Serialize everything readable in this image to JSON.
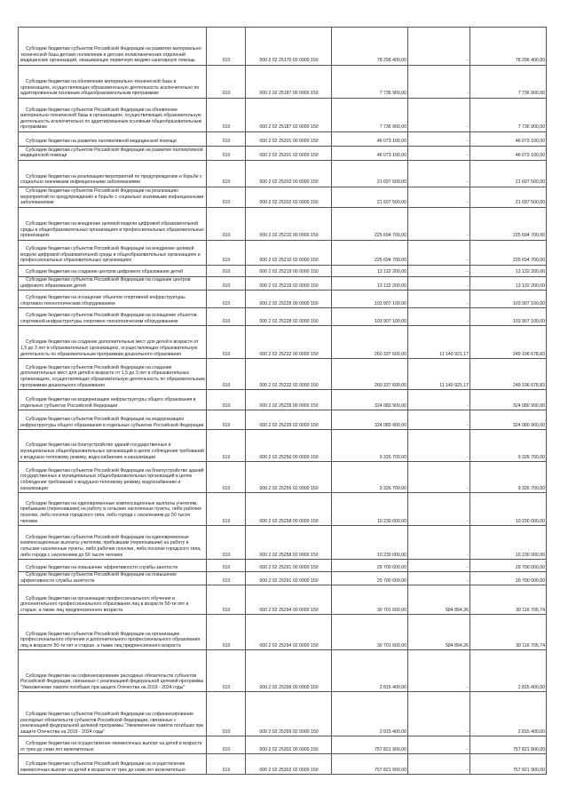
{
  "rows": [
    {
      "name": "Субсидии бюджетам субъектов Российской Федерации на развитие материально-технической базы детских поликлиник и детских поликлинических отделений медицинских организаций, оказывающих первичную медико-санитарную помощь",
      "code": "010",
      "kbk": "000 2 02 25170 02 0000 150",
      "approved": "78 296 400,00",
      "executed": "-",
      "remaining": "78 296 400,00"
    },
    {
      "name": "Субсидии бюджетам на обновление материально-технической базы в организациях, осуществляющих образовательную деятельность исключительно по адаптированным основным общеобразовательным программам",
      "code": "010",
      "kbk": "000 2 02 25187 00 0000 150",
      "approved": "7 736 900,00",
      "executed": "-",
      "remaining": "7 736 900,00"
    },
    {
      "name": "Субсидии бюджетам субъектов Российской Федерации на обновление материально-технической базы в организациях, осуществляющих образовательную деятельность исключительно по адаптированным основным общеобразовательным программам",
      "code": "010",
      "kbk": "000 2 02 25187 02 0000 150",
      "approved": "7 736 900,00",
      "executed": "-",
      "remaining": "7 736 900,00"
    },
    {
      "name": "Субсидии бюджетам на развитие паллиативной медицинской помощи",
      "code": "010",
      "kbk": "000 2 02 25201 00 0000 150",
      "approved": "46 073 100,00",
      "executed": "-",
      "remaining": "46 073 100,00"
    },
    {
      "name": "Субсидии бюджетам субъектов Российской Федерации на развитие паллиативной медицинской помощи",
      "code": "010",
      "kbk": "000 2 02 25201 02 0000 150",
      "approved": "46 073 100,00",
      "executed": "-",
      "remaining": "46 073 100,00"
    },
    {
      "name": "Субсидии бюджетам на реализацию мероприятий по предупреждению и борьбе с социально значимыми инфекционными заболеваниями",
      "code": "010",
      "kbk": "000 2 02 25202 00 0000 150",
      "approved": "21 697 500,00",
      "executed": "-",
      "remaining": "21 697 500,00"
    },
    {
      "name": "Субсидии бюджетам субъектов Российской Федерации на реализацию мероприятий по предупреждению и борьбе с социально значимыми инфекционными заболеваниями",
      "code": "010",
      "kbk": "000 2 02 25202 02 0000 150",
      "approved": "21 697 500,00",
      "executed": "-",
      "remaining": "21 697 500,00"
    },
    {
      "name": "Субсидии бюджетам на внедрение целевой модели цифровой образовательной среды в общеобразовательных организациях и профессиональных образовательных организациях",
      "code": "010",
      "kbk": "000 2 02 25210 00 0000 150",
      "approved": "225 694 700,00",
      "executed": "-",
      "remaining": "225 694 700,00"
    },
    {
      "name": "Субсидии бюджетам субъектов Российской Федерации на внедрение целевой модели цифровой образовательной среды в общеобразовательных организациях и профессиональных образовательных организациях",
      "code": "010",
      "kbk": "000 2 02 25210 02 0000 150",
      "approved": "225 694 700,00",
      "executed": "-",
      "remaining": "225 694 700,00"
    },
    {
      "name": "Субсидии бюджетам на создание центров цифрового образования детей",
      "code": "010",
      "kbk": "000 2 02 25219 00 0000 150",
      "approved": "13 132 200,00",
      "executed": "-",
      "remaining": "13 132 200,00"
    },
    {
      "name": "Субсидии бюджетам субъектов Российской Федерации на создание центров цифрового образования детей",
      "code": "010",
      "kbk": "000 2 02 25219 02 0000 150",
      "approved": "13 132 200,00",
      "executed": "-",
      "remaining": "13 132 200,00"
    },
    {
      "name": "Субсидии бюджетам на оснащение объектов спортивной инфраструктуры спортивно-технологическим оборудованием",
      "code": "010",
      "kbk": "000 2 02 25228 00 0000 150",
      "approved": "103 907 100,00",
      "executed": "-",
      "remaining": "103 907 100,00"
    },
    {
      "name": "Субсидии бюджетам субъектов Российской Федерации на оснащение объектов спортивной инфраструктуры спортивно-технологическим оборудованием",
      "code": "010",
      "kbk": "000 2 02 25228 02 0000 150",
      "approved": "103 907 100,00",
      "executed": "-",
      "remaining": "103 907 100,00"
    },
    {
      "name": "Субсидии бюджетам на создание дополнительных мест для детей в возрасте от 1,5 до 3 лет в образовательных организациях, осуществляющих образовательную деятельность по образовательным программам дошкольного образования",
      "code": "010",
      "kbk": "000 2 02 25232 00 0000 150",
      "approved": "260 337 600,00",
      "executed": "11 140 921,17",
      "remaining": "249 196 678,83"
    },
    {
      "name": "Субсидии бюджетам субъектов Российской Федерации на создание дополнительных мест для детей в возрасте от 1,5 до 3 лет в образовательных организациях, осуществляющих образовательную деятельность по образовательным программам дошкольного образования",
      "code": "010",
      "kbk": "000 2 02 25232 02 0000 150",
      "approved": "260 337 600,00",
      "executed": "11 140 921,17",
      "remaining": "249 196 678,83"
    },
    {
      "name": "Субсидии бюджетам на модернизацию инфраструктуры общего образования в отдельных субъектах Российской Федерации",
      "code": "010",
      "kbk": "000 2 02 25239 00 0000 150",
      "approved": "324 080 900,00",
      "executed": "-",
      "remaining": "324 080 900,00"
    },
    {
      "name": "Субсидии бюджетам субъектов Российской Федерации на модернизацию инфраструктуры общего образования в отдельных субъектах Российской Федерации",
      "code": "010",
      "kbk": "000 2 02 25239 02 0000 150",
      "approved": "324 080 900,00",
      "executed": "-",
      "remaining": "324 080 900,00"
    },
    {
      "name": "Субсидии бюджетам на благоустройство зданий государственных и муниципальных общеобразовательных организаций в целях соблюдения требований к воздушно-тепловому режиму, водоснабжению и канализации",
      "code": "010",
      "kbk": "000 2 02 25256 00 0000 150",
      "approved": "9 326 700,00",
      "executed": "-",
      "remaining": "9 326 700,00"
    },
    {
      "name": "Субсидии бюджетам субъектов Российской Федерации на благоустройство зданий государственных и муниципальных общеобразовательных организаций в целях соблюдения требований к воздушно-тепловому режиму, водоснабжению и канализации",
      "code": "010",
      "kbk": "000 2 02 25256 02 0000 150",
      "approved": "9 326 700,00",
      "executed": "-",
      "remaining": "9 326 700,00"
    },
    {
      "name": "Субсидии бюджетам на единовременные компенсационные выплаты учителям, прибывшим (переехавшим) на работу в сельские населенные пункты, либо рабочие поселки, либо поселки городского типа, либо города с населением до 50 тысяч человек",
      "code": "010",
      "kbk": "000 2 02 25258 00 0000 150",
      "approved": "10 230 000,00",
      "executed": "-",
      "remaining": "10 230 000,00"
    },
    {
      "name": "Субсидии бюджетам субъектов Российской Федерации на единовременные компенсационные выплаты учителям, прибывшим (переехавшим) на работу в сельские населенные пункты, либо рабочие поселки, либо поселки городского типа, либо города с населением до 50 тысяч человек",
      "code": "010",
      "kbk": "000 2 02 25258 02 0000 150",
      "approved": "10 230 000,00",
      "executed": "-",
      "remaining": "10 230 000,00"
    },
    {
      "name": "Субсидии бюджетам на повышение эффективности службы занятости",
      "code": "010",
      "kbk": "000 2 02 25291 00 0000 150",
      "approved": "29 700 000,00",
      "executed": "-",
      "remaining": "29 700 000,00"
    },
    {
      "name": "Субсидии бюджетам субъектов Российской Федерации на повышение эффективности службы занятости",
      "code": "010",
      "kbk": "000 2 02 25291 02 0000 150",
      "approved": "29 700 000,00",
      "executed": "-",
      "remaining": "29 700 000,00"
    },
    {
      "name": "Субсидии бюджетам на организацию профессионального обучения и дополнительного профессионального образования лиц в возрасте 50-ти лет и старше, а также лиц предпенсионного возраста",
      "code": "010",
      "kbk": "000 2 02 25294 00 0000 150",
      "approved": "30 701 600,00",
      "executed": "584 894,26",
      "remaining": "30 116 705,74"
    },
    {
      "name": "Субсидии бюджетам субъектов Российской Федерации на организацию профессионального обучения и дополнительного профессионального образования лиц в возрасте 50-ти лет и старше, а также лиц предпенсионного возраста",
      "code": "010",
      "kbk": "000 2 02 25294 02 0000 150",
      "approved": "30 701 600,00",
      "executed": "584 894,26",
      "remaining": "30 116 705,74"
    },
    {
      "name": "Субсидии бюджетам на софинансирование расходных обязательств субъектов Российской Федерации, связанных с реализацией федеральной целевой программы \"Увековечение памяти погибших при защите Отечества на 2019 - 2024 годы\"",
      "code": "010",
      "kbk": "000 2 02 25299 00 0000 150",
      "approved": "2 815 400,00",
      "executed": "-",
      "remaining": "2 815 400,00"
    },
    {
      "name": "Субсидии бюджетам субъектов Российской Федерации на софинансирование расходных обязательств субъектов Российской Федерации, связанных с реализацией федеральной целевой программы \"Увековечение памяти погибших при защите Отечества на 2019 - 2024 годы\"",
      "code": "010",
      "kbk": "000 2 02 25299 02 0000 150",
      "approved": "2 815 400,00",
      "executed": "-",
      "remaining": "2 815 400,00"
    },
    {
      "name": "Субсидии бюджетам на осуществление ежемесячных выплат на детей в возрасте от трех до семи лет включительно",
      "code": "010",
      "kbk": "000 2 02 25302 00 0000 150",
      "approved": "757 821 900,00",
      "executed": "-",
      "remaining": "757 821 900,00"
    },
    {
      "name": "Субсидии бюджетам субъектов Российской Федерации на осуществление ежемесячных выплат на детей в возрасте от трех до семи лет включительно",
      "code": "010",
      "kbk": "000 2 02 25302 02 0000 150",
      "approved": "757 821 900,00",
      "executed": "-",
      "remaining": "757 821 900,00"
    }
  ]
}
